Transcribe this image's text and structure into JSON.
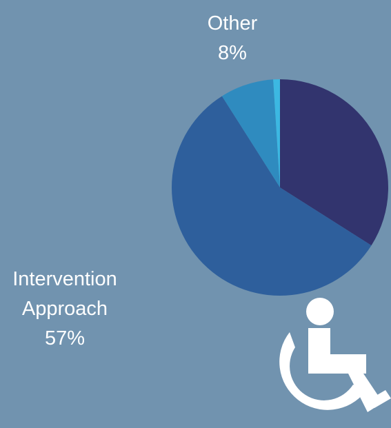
{
  "chart_data": {
    "type": "pie",
    "categories": [
      null,
      "Intervention Approach",
      "Other",
      null
    ],
    "values": [
      34,
      57,
      8,
      1
    ],
    "value_labels": [
      null,
      "57%",
      "8%",
      null
    ],
    "colors": [
      "#32346e",
      "#2e5f9c",
      "#2f8bbf",
      "#3cb8e2"
    ]
  }
}
